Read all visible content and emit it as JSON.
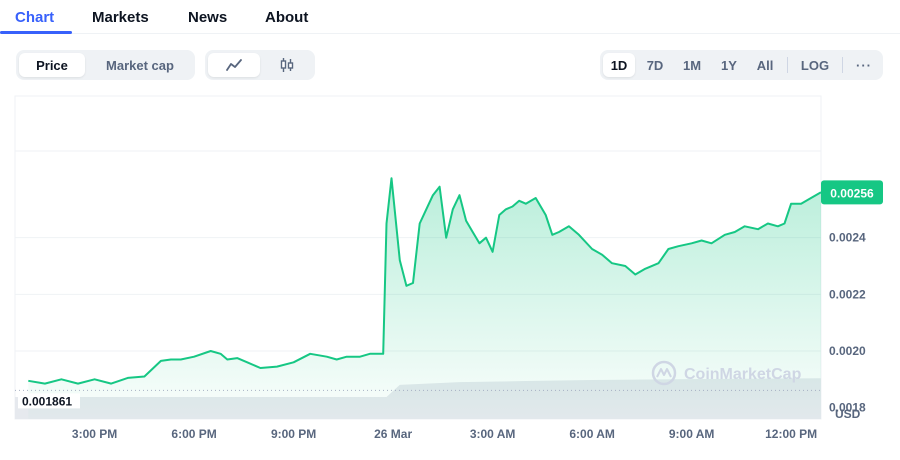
{
  "tabs": [
    {
      "label": "Chart",
      "active": true
    },
    {
      "label": "Markets",
      "active": false
    },
    {
      "label": "News",
      "active": false
    },
    {
      "label": "About",
      "active": false
    }
  ],
  "toolbar": {
    "metric_buttons": [
      {
        "label": "Price",
        "selected": true
      },
      {
        "label": "Market cap",
        "selected": false
      }
    ],
    "chart_type_buttons": [
      {
        "icon": "line-chart-icon",
        "selected": true
      },
      {
        "icon": "candlestick-icon",
        "selected": false
      }
    ],
    "range_buttons": [
      {
        "label": "1D",
        "selected": true
      },
      {
        "label": "7D",
        "selected": false
      },
      {
        "label": "1M",
        "selected": false
      },
      {
        "label": "1Y",
        "selected": false
      },
      {
        "label": "All",
        "selected": false
      }
    ],
    "scale_button": {
      "label": "LOG"
    },
    "more_button": {
      "label": "···"
    }
  },
  "watermark": {
    "text": "CoinMarketCap"
  },
  "colors": {
    "accent": "#3861fb",
    "line": "#16c784",
    "current_badge": "#16c784"
  },
  "chart_data": {
    "type": "area",
    "currency_label": "USD",
    "current_price_label": "0.00256",
    "reference_price_label": "0.001861",
    "y_ticks": [
      "0.0018",
      "0.0020",
      "0.0022",
      "0.0024"
    ],
    "y_tick_values": [
      0.0018,
      0.002,
      0.0022,
      0.0024
    ],
    "ylim": [
      0.00176,
      0.0029
    ],
    "x_ticks": [
      "3:00 PM",
      "6:00 PM",
      "9:00 PM",
      "26 Mar",
      "3:00 AM",
      "6:00 AM",
      "9:00 AM",
      "12:00 PM"
    ],
    "x_tick_hours": [
      15,
      18,
      21,
      24,
      27,
      30,
      33,
      36
    ],
    "xlim_hours": [
      12.6,
      36.9
    ],
    "series": [
      {
        "x_hours": [
          13.0,
          13.5,
          14.0,
          14.5,
          15.0,
          15.5,
          16.0,
          16.5,
          17.0,
          17.3,
          17.6,
          18.0,
          18.5,
          18.8,
          19.0,
          19.3,
          19.6,
          20.0,
          20.5,
          21.0,
          21.5,
          22.0,
          22.3,
          22.6,
          23.0,
          23.3,
          23.7,
          23.8,
          23.95,
          24.2,
          24.4,
          24.6,
          24.8,
          25.0,
          25.2,
          25.4,
          25.6,
          25.8,
          26.0,
          26.2,
          26.4,
          26.6,
          26.8,
          27.0,
          27.2,
          27.4,
          27.6,
          27.8,
          28.0,
          28.3,
          28.6,
          28.8,
          29.0,
          29.3,
          29.6,
          30.0,
          30.3,
          30.6,
          31.0,
          31.3,
          31.6,
          32.0,
          32.3,
          32.6,
          33.0,
          33.3,
          33.6,
          34.0,
          34.3,
          34.6,
          35.0,
          35.3,
          35.6,
          35.8,
          36.0,
          36.3,
          36.6,
          36.9
        ],
        "y_values": [
          0.001895,
          0.001885,
          0.0019,
          0.001885,
          0.0019,
          0.001885,
          0.001905,
          0.00191,
          0.001965,
          0.00197,
          0.00197,
          0.00198,
          0.002,
          0.00199,
          0.00197,
          0.001975,
          0.00196,
          0.00194,
          0.001945,
          0.00196,
          0.00199,
          0.00198,
          0.00197,
          0.00198,
          0.00198,
          0.00199,
          0.00199,
          0.00245,
          0.00261,
          0.00232,
          0.00223,
          0.00224,
          0.00245,
          0.0025,
          0.00255,
          0.00258,
          0.0024,
          0.0025,
          0.00255,
          0.00246,
          0.00242,
          0.00238,
          0.0024,
          0.00235,
          0.00248,
          0.0025,
          0.00251,
          0.00253,
          0.00252,
          0.00254,
          0.00248,
          0.00241,
          0.00242,
          0.00244,
          0.00241,
          0.00236,
          0.00234,
          0.00231,
          0.0023,
          0.00227,
          0.00229,
          0.00231,
          0.00236,
          0.00237,
          0.00238,
          0.00239,
          0.00238,
          0.00241,
          0.00242,
          0.00244,
          0.00243,
          0.00245,
          0.00244,
          0.00245,
          0.00252,
          0.00252,
          0.00254,
          0.00256
        ]
      }
    ],
    "volume": {
      "x_hours": [
        12.6,
        23.8,
        24.2,
        26.0,
        28.0,
        30.0,
        32.0,
        34.0,
        36.9
      ],
      "relative_height": [
        0.4,
        0.4,
        0.62,
        0.67,
        0.69,
        0.71,
        0.72,
        0.73,
        0.74
      ]
    }
  }
}
